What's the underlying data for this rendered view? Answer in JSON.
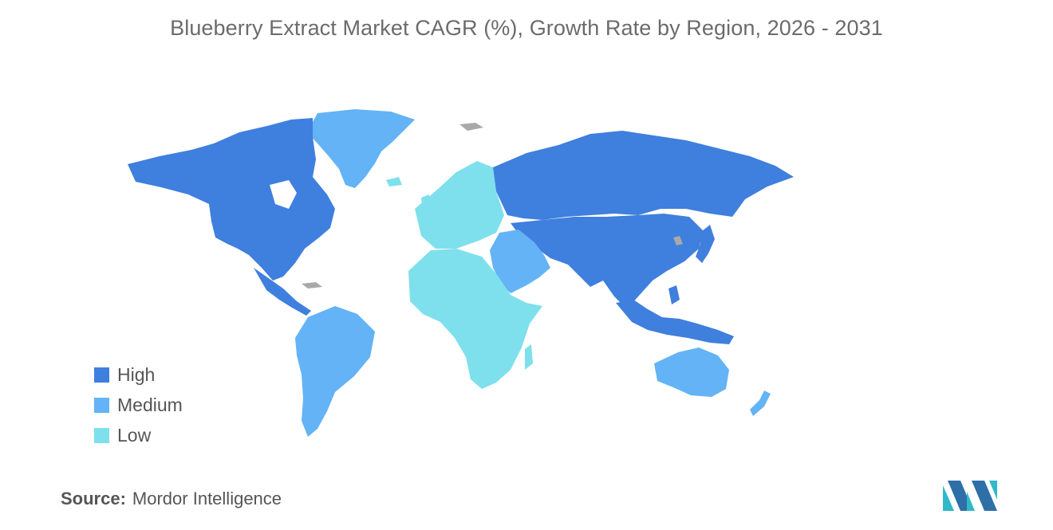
{
  "title": "Blueberry Extract Market CAGR (%), Growth Rate by Region, 2026 - 2031",
  "legend": {
    "items": [
      {
        "label": "High",
        "color": "#3f7fde"
      },
      {
        "label": "Medium",
        "color": "#63b3f6"
      },
      {
        "label": "Low",
        "color": "#7ee0ec"
      }
    ]
  },
  "colors": {
    "high": "#3f7fde",
    "medium": "#63b3f6",
    "low": "#7ee0ec",
    "no_data": "#a9a9a9"
  },
  "regions": [
    {
      "name": "North America",
      "level": "High"
    },
    {
      "name": "Asia-Pacific",
      "level": "High"
    },
    {
      "name": "Russia",
      "level": "High"
    },
    {
      "name": "South America",
      "level": "Medium"
    },
    {
      "name": "Australia",
      "level": "Medium"
    },
    {
      "name": "Middle East",
      "level": "Medium"
    },
    {
      "name": "Greenland",
      "level": "Medium"
    },
    {
      "name": "Europe",
      "level": "Low"
    },
    {
      "name": "Africa",
      "level": "Low"
    }
  ],
  "source": {
    "label": "Source:",
    "value": "Mordor Intelligence"
  },
  "logo_icon": "mordor-intelligence-logo-icon"
}
